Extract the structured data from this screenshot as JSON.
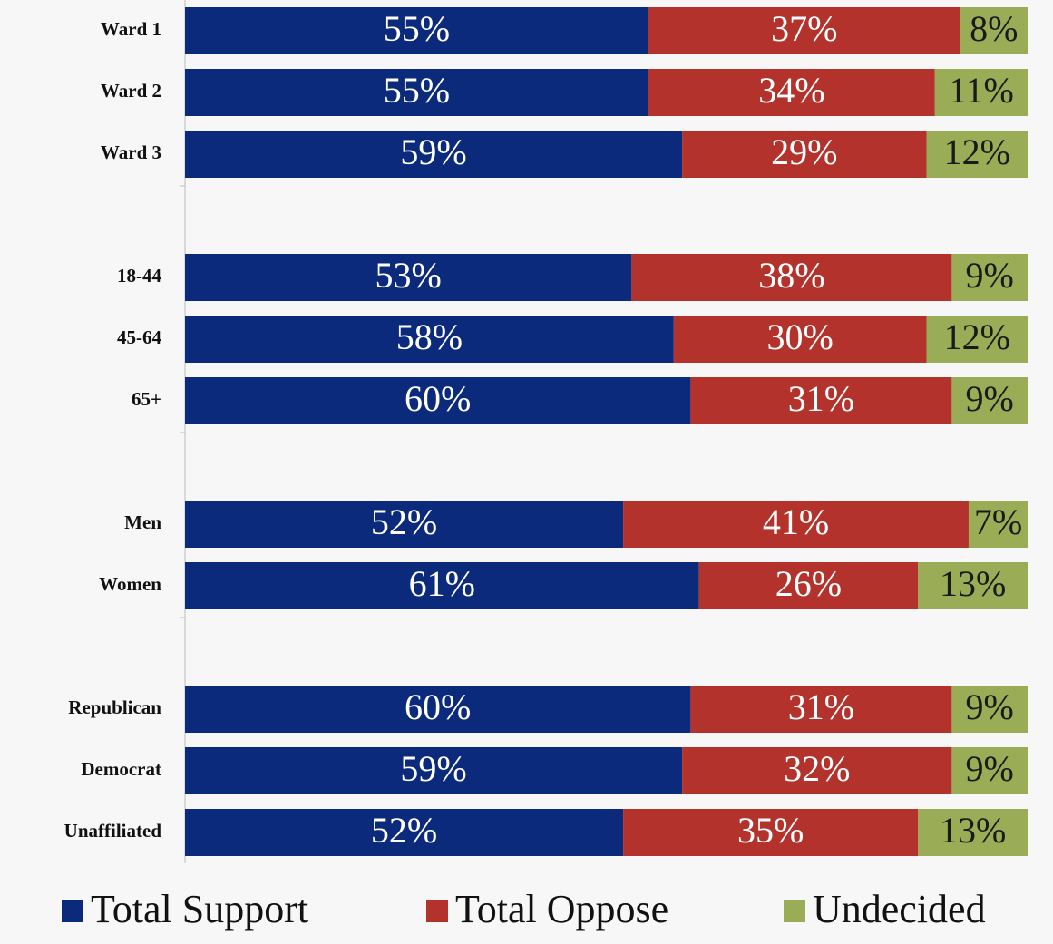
{
  "chart_data": {
    "type": "stacked-bar",
    "orientation": "horizontal",
    "categories": [
      "Ward 1",
      "Ward 2",
      "Ward 3",
      null,
      "18-44",
      "45-64",
      "65+",
      null,
      "Men",
      "Women",
      null,
      "Republican",
      "Democrat",
      "Unaffiliated"
    ],
    "xlim": [
      0,
      100
    ],
    "legend": "bottom",
    "series": [
      {
        "name": "Total Support",
        "color": "#0c2a7c",
        "label_color": "#ffffff",
        "values": [
          55,
          55,
          59,
          null,
          53,
          58,
          60,
          null,
          52,
          61,
          null,
          60,
          59,
          52
        ],
        "value_labels": [
          "55%",
          "55%",
          "59%",
          null,
          "53%",
          "58%",
          "60%",
          null,
          "52%",
          "61%",
          null,
          "60%",
          "59%",
          "52%"
        ]
      },
      {
        "name": "Total Oppose",
        "color": "#b3322c",
        "label_color": "#ffffff",
        "values": [
          37,
          34,
          29,
          null,
          38,
          30,
          31,
          null,
          41,
          26,
          null,
          31,
          32,
          35
        ],
        "value_labels": [
          "37%",
          "34%",
          "29%",
          null,
          "38%",
          "30%",
          "31%",
          null,
          "41%",
          "26%",
          null,
          "31%",
          "32%",
          "35%"
        ]
      },
      {
        "name": "Undecided",
        "color": "#9aac55",
        "label_color": "#1a1a1a",
        "values": [
          8,
          11,
          12,
          null,
          9,
          12,
          9,
          null,
          7,
          13,
          null,
          9,
          9,
          13
        ],
        "value_labels": [
          "8%",
          "11%",
          "12%",
          null,
          "9%",
          "12%",
          "9%",
          null,
          "7%",
          "13%",
          null,
          "9%",
          "9%",
          "13%"
        ]
      }
    ]
  }
}
